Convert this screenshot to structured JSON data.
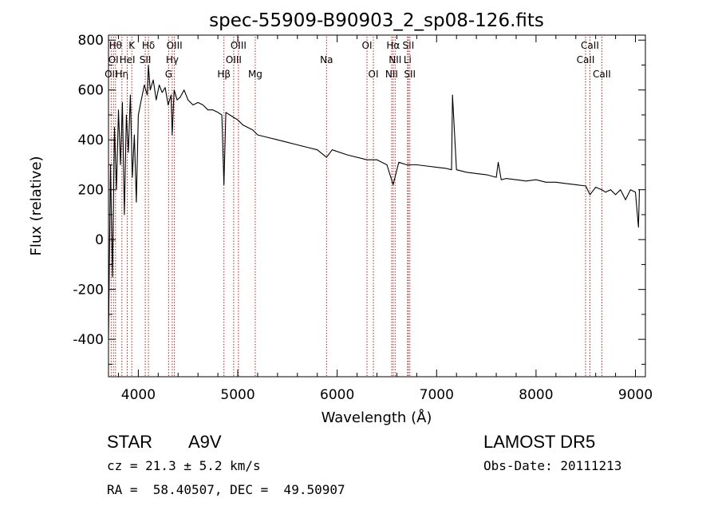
{
  "chart_data": {
    "type": "line",
    "title": "spec-55909-B90903_2_sp08-126.fits",
    "xlabel": "Wavelength (Å)",
    "ylabel": "Flux (relative)",
    "xlim": [
      3700,
      9100
    ],
    "ylim": [
      -550,
      820
    ],
    "xticks": [
      4000,
      5000,
      6000,
      7000,
      8000,
      9000
    ],
    "yticks": [
      -400,
      -200,
      0,
      200,
      400,
      600,
      800
    ],
    "grid": false,
    "line_color": "#000000",
    "marker_color": "#b22222",
    "series": [
      {
        "x": [
          3700,
          3720,
          3740,
          3760,
          3780,
          3800,
          3820,
          3840,
          3860,
          3880,
          3900,
          3920,
          3940,
          3960,
          3980,
          4000,
          4030,
          4060,
          4090,
          4101,
          4120,
          4150,
          4180,
          4210,
          4240,
          4270,
          4300,
          4330,
          4340,
          4360,
          4390,
          4420,
          4460,
          4500,
          4550,
          4600,
          4650,
          4700,
          4750,
          4800,
          4840,
          4861,
          4880,
          4920,
          4960,
          5000,
          5050,
          5100,
          5150,
          5200,
          5300,
          5400,
          5500,
          5600,
          5700,
          5800,
          5893,
          5950,
          6100,
          6300,
          6400,
          6500,
          6563,
          6620,
          6700,
          6800,
          6900,
          7000,
          7100,
          7150,
          7160,
          7200,
          7300,
          7400,
          7500,
          7600,
          7620,
          7650,
          7700,
          7800,
          7900,
          8000,
          8100,
          8200,
          8300,
          8400,
          8500,
          8542,
          8600,
          8662,
          8700,
          8750,
          8800,
          8850,
          8900,
          8950,
          9000,
          9030,
          9040
        ],
        "y": [
          -400,
          300,
          -150,
          450,
          200,
          520,
          300,
          550,
          100,
          500,
          350,
          580,
          250,
          420,
          150,
          500,
          560,
          620,
          580,
          700,
          600,
          640,
          560,
          620,
          590,
          610,
          540,
          580,
          420,
          600,
          560,
          570,
          600,
          560,
          540,
          550,
          540,
          520,
          520,
          510,
          500,
          220,
          510,
          500,
          490,
          480,
          460,
          450,
          440,
          420,
          410,
          400,
          390,
          380,
          370,
          360,
          330,
          360,
          340,
          320,
          320,
          300,
          220,
          310,
          300,
          300,
          295,
          290,
          285,
          280,
          580,
          280,
          270,
          265,
          260,
          250,
          310,
          240,
          245,
          240,
          235,
          240,
          230,
          230,
          225,
          220,
          215,
          180,
          210,
          200,
          190,
          200,
          180,
          200,
          160,
          200,
          190,
          50,
          200
        ]
      }
    ],
    "line_markers": [
      {
        "label": "OII",
        "wavelength": 3727,
        "row": 3
      },
      {
        "label": "OI",
        "wavelength": 3750,
        "row": 2
      },
      {
        "label": "Hθ",
        "wavelength": 3771,
        "row": 1
      },
      {
        "label": "Hη",
        "wavelength": 3835,
        "row": 3
      },
      {
        "label": "HeI",
        "wavelength": 3889,
        "row": 2
      },
      {
        "label": "K",
        "wavelength": 3934,
        "row": 1
      },
      {
        "label": "SII",
        "wavelength": 4070,
        "row": 2
      },
      {
        "label": "Hδ",
        "wavelength": 4102,
        "row": 1
      },
      {
        "label": "G",
        "wavelength": 4305,
        "row": 3
      },
      {
        "label": "Hγ",
        "wavelength": 4341,
        "row": 2
      },
      {
        "label": "OIII",
        "wavelength": 4363,
        "row": 1
      },
      {
        "label": "Hβ",
        "wavelength": 4861,
        "row": 3
      },
      {
        "label": "OIII",
        "wavelength": 4959,
        "row": 2
      },
      {
        "label": "OIII",
        "wavelength": 5007,
        "row": 1
      },
      {
        "label": "Mg",
        "wavelength": 5176,
        "row": 3
      },
      {
        "label": "Na",
        "wavelength": 5893,
        "row": 2
      },
      {
        "label": "OI",
        "wavelength": 6300,
        "row": 1
      },
      {
        "label": "OI",
        "wavelength": 6364,
        "row": 3
      },
      {
        "label": "NII",
        "wavelength": 6548,
        "row": 3
      },
      {
        "label": "Hα",
        "wavelength": 6563,
        "row": 1
      },
      {
        "label": "NII",
        "wavelength": 6583,
        "row": 2
      },
      {
        "label": "Li",
        "wavelength": 6708,
        "row": 2
      },
      {
        "label": "SII",
        "wavelength": 6716,
        "row": 1
      },
      {
        "label": "SII",
        "wavelength": 6731,
        "row": 3
      },
      {
        "label": "CaII",
        "wavelength": 8498,
        "row": 2
      },
      {
        "label": "CaII",
        "wavelength": 8542,
        "row": 1
      },
      {
        "label": "CaII",
        "wavelength": 8662,
        "row": 3
      }
    ]
  },
  "info": {
    "object_class": "STAR",
    "subclass": "A9V",
    "survey": "LAMOST DR5",
    "redshift": "cz = 21.3 ± 5.2 km/s",
    "obs_date": "Obs-Date: 20111213",
    "coords": "RA =  58.40507, DEC =  49.50907"
  }
}
